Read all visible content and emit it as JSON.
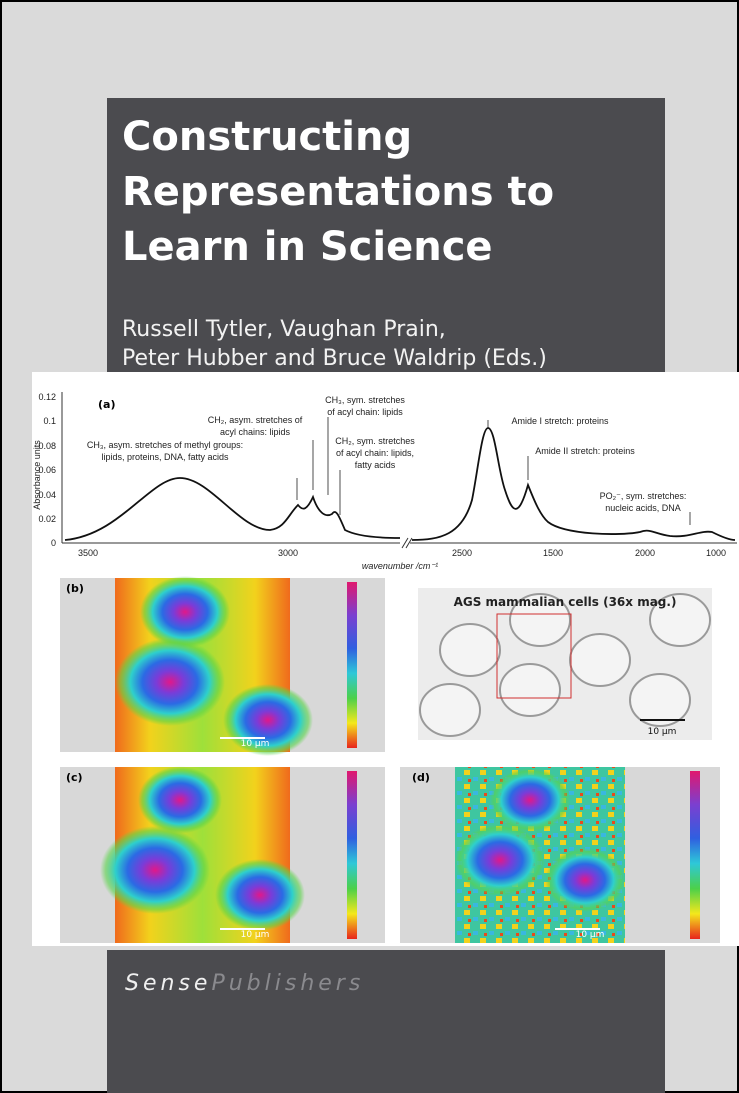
{
  "cover": {
    "title": [
      "Constructing",
      "Representations to",
      "Learn in Science"
    ],
    "authors": [
      "Russell Tytler, Vaughan Prain,",
      "Peter Hubber and Bruce Waldrip (Eds.)"
    ],
    "publisher": [
      "Sense",
      "Publishers"
    ]
  },
  "figure": {
    "spectrum": {
      "label": "(a)",
      "ylabel": "Absorbance units",
      "xlabel": "wavenumber /cm⁻¹",
      "yticks": [
        "0.12",
        "0.1",
        "0.08",
        "0.06",
        "0.04",
        "0.02",
        "0"
      ],
      "xticks": [
        "3500",
        "3000",
        "2500",
        "1500",
        "2000",
        "1000"
      ],
      "annotations": [
        [
          "CH₃, asym. stretches of methyl groups:",
          "lipids, proteins, DNA, fatty acids"
        ],
        [
          "CH₂, asym. stretches of",
          "acyl chains: lipids"
        ],
        [
          "CH₃, sym. stretches",
          "of acyl chain: lipids"
        ],
        [
          "CH₂, sym. stretches",
          "of acyl chain: lipids,",
          "fatty acids"
        ],
        [
          "Amide I stretch: proteins"
        ],
        [
          "Amide II stretch: proteins"
        ],
        [
          "PO₂⁻, sym. stretches:",
          "nucleic acids, DNA"
        ]
      ]
    },
    "panels": [
      {
        "label": "(b)",
        "scale": "10 µm"
      },
      {
        "title": "AGS mammalian cells (36x mag.)",
        "scale": "10 µm"
      },
      {
        "label": "(c)",
        "scale": "10 µm"
      },
      {
        "label": "(d)",
        "scale": "10 µm"
      }
    ]
  }
}
